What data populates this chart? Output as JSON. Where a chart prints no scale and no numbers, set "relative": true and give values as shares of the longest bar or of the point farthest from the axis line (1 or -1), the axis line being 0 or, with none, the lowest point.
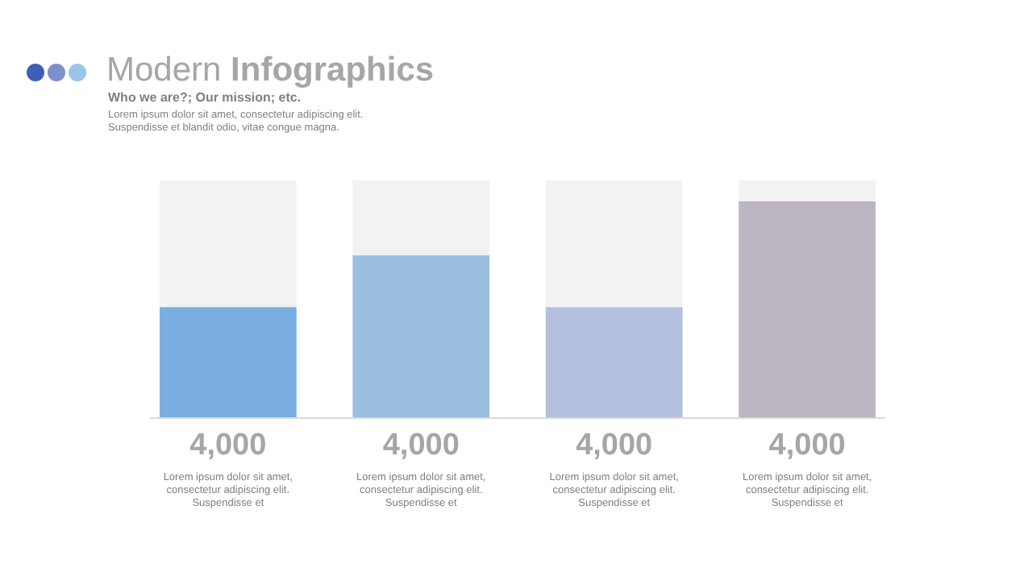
{
  "chart_data": {
    "type": "bar",
    "title": "Modern Infographics",
    "subtitle": "Who we are?; Our mission; etc.",
    "relative": true,
    "categories": [
      null,
      null,
      null,
      null
    ],
    "values": [
      0.51,
      0.75,
      0.51,
      1
    ],
    "colors": [
      "#7aaee0",
      "#9bbfdf",
      "#b4c0de",
      "#bdb5c2"
    ],
    "annotations": [
      "Lorem ipsum dolor sit amet, consectetur adipiscing elit.\nSuspendisse et blandit odio, vitae congue magna.",
      "4,000",
      "4,000",
      "4,000",
      "4,000",
      "Lorem ipsum dolor sit amet,\nconsectetur adipiscing elit.\nSuspendisse et",
      "Lorem ipsum dolor sit amet,\nconsectetur adipiscing elit.\nSuspendisse et",
      "Lorem ipsum dolor sit amet,\nconsectetur adipiscing elit.\nSuspendisse et",
      "Lorem ipsum dolor sit amet,\nconsectetur adipiscing elit.\nSuspendisse et"
    ]
  }
}
